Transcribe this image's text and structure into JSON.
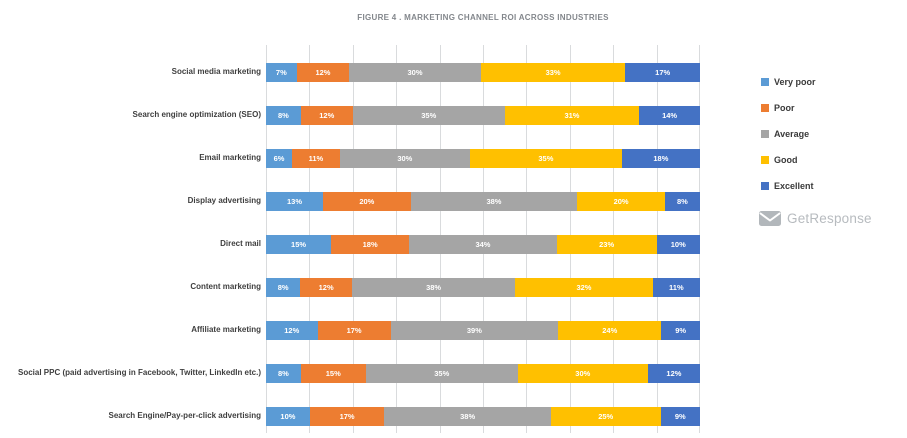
{
  "title": "Figure 4 . MARKETING CHANNEL ROI ACROSS INDUSTRIES",
  "logo": {
    "text": "GetResponse"
  },
  "colors": {
    "very_poor": "#5B9BD5",
    "poor": "#ED7D31",
    "average": "#A5A5A5",
    "good": "#FFC000",
    "excellent": "#4472C4",
    "gridline": "#D9DBDD",
    "title_text": "#83878c",
    "category_label": "#3F3F3F",
    "legend_text": "#3A3A3A",
    "logo_gray": "#B2B7BB"
  },
  "chart_data": {
    "type": "bar",
    "subtype": "horizontal-100pct-stacked",
    "title": "Figure 4 . MARKETING CHANNEL ROI ACROSS INDUSTRIES",
    "xlabel": "",
    "ylabel": "",
    "xlim": [
      0,
      100
    ],
    "grid": true,
    "gridline_step_pct": 10,
    "legend_position": "right",
    "value_suffix": "%",
    "categories": [
      "Social media marketing",
      "Search engine optimization (SEO)",
      "Email marketing",
      "Display advertising",
      "Direct mail",
      "Content marketing",
      "Affiliate marketing",
      "Social PPC (paid advertising in Facebook, Twitter, LinkedIn etc.)",
      "Search Engine/Pay-per-click advertising"
    ],
    "series": [
      {
        "name": "Very poor",
        "color": "#5B9BD5",
        "values": [
          7,
          8,
          6,
          13,
          15,
          8,
          12,
          8,
          10
        ]
      },
      {
        "name": "Poor",
        "color": "#ED7D31",
        "values": [
          12,
          12,
          11,
          20,
          18,
          12,
          17,
          15,
          17
        ]
      },
      {
        "name": "Average",
        "color": "#A5A5A5",
        "values": [
          30,
          35,
          30,
          38,
          34,
          38,
          39,
          35,
          38
        ]
      },
      {
        "name": "Good",
        "color": "#FFC000",
        "values": [
          33,
          31,
          35,
          20,
          23,
          32,
          24,
          30,
          25
        ]
      },
      {
        "name": "Excellent",
        "color": "#4472C4",
        "values": [
          17,
          14,
          18,
          8,
          10,
          11,
          9,
          12,
          9
        ]
      }
    ]
  },
  "layout_note_values_visible_only": true
}
